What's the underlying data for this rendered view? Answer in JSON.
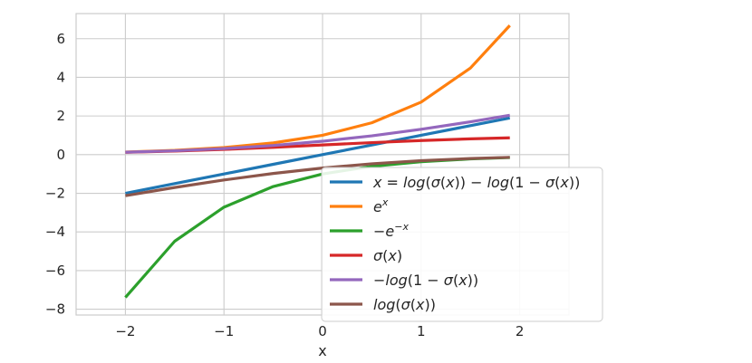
{
  "chart_data": {
    "type": "line",
    "title": "",
    "xlabel": "x",
    "ylabel": "",
    "xlim": [
      -2.5,
      2.5
    ],
    "ylim": [
      -8.3,
      7.3
    ],
    "x_ticks": [
      -2,
      -1,
      0,
      1,
      2
    ],
    "x_tick_labels": [
      "−2",
      "−1",
      "0",
      "1",
      "2"
    ],
    "y_ticks": [
      -8,
      -6,
      -4,
      -2,
      0,
      2,
      4,
      6
    ],
    "y_tick_labels": [
      "−8",
      "−6",
      "−4",
      "−2",
      "0",
      "2",
      "4",
      "6"
    ],
    "grid": true,
    "legend_position": "lower-right",
    "x_range": [
      -2,
      1.9
    ],
    "series": [
      {
        "name_plain": "x = log(σ(x)) − log(1 − σ(x))",
        "color": "#1f77b4",
        "x": [
          -2.0,
          -1.5,
          -1.0,
          -0.5,
          0.0,
          0.5,
          1.0,
          1.5,
          1.9
        ],
        "y": [
          -2.0,
          -1.5,
          -1.0,
          -0.5,
          0.0,
          0.5,
          1.0,
          1.5,
          1.9
        ]
      },
      {
        "name_plain": "e^x",
        "color": "#ff7f0e",
        "x": [
          -2.0,
          -1.5,
          -1.0,
          -0.5,
          0.0,
          0.5,
          1.0,
          1.5,
          1.9
        ],
        "y": [
          0.135,
          0.223,
          0.368,
          0.607,
          1.0,
          1.649,
          2.718,
          4.482,
          6.686
        ]
      },
      {
        "name_plain": "−e^−x",
        "color": "#2ca02c",
        "x": [
          -2.0,
          -1.5,
          -1.0,
          -0.5,
          0.0,
          0.5,
          1.0,
          1.5,
          1.9
        ],
        "y": [
          -7.389,
          -4.482,
          -2.718,
          -1.649,
          -1.0,
          -0.607,
          -0.368,
          -0.223,
          -0.15
        ]
      },
      {
        "name_plain": "σ(x)",
        "color": "#d62728",
        "x": [
          -2.0,
          -1.5,
          -1.0,
          -0.5,
          0.0,
          0.5,
          1.0,
          1.5,
          1.9
        ],
        "y": [
          0.119,
          0.182,
          0.269,
          0.378,
          0.5,
          0.622,
          0.731,
          0.818,
          0.87
        ]
      },
      {
        "name_plain": "−log(1 − σ(x))",
        "color": "#9467bd",
        "x": [
          -2.0,
          -1.5,
          -1.0,
          -0.5,
          0.0,
          0.5,
          1.0,
          1.5,
          1.9
        ],
        "y": [
          0.127,
          0.201,
          0.313,
          0.474,
          0.693,
          0.974,
          1.313,
          1.701,
          2.039
        ]
      },
      {
        "name_plain": "log(σ(x))",
        "color": "#8c564b",
        "x": [
          -2.0,
          -1.5,
          -1.0,
          -0.5,
          0.0,
          0.5,
          1.0,
          1.5,
          1.9
        ],
        "y": [
          -2.127,
          -1.701,
          -1.313,
          -0.974,
          -0.693,
          -0.474,
          -0.313,
          -0.201,
          -0.139
        ]
      }
    ]
  }
}
